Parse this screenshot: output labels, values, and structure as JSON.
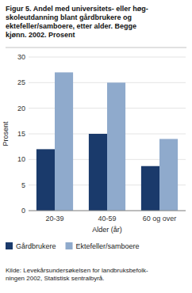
{
  "chart_data": {
    "type": "bar",
    "title": "Figur 5.  Andel med universitets- eller høg-\nskoleutdanning blant gårdbrukere og\nektefeller/samboere, etter alder. Begge\nkjønn. 2002. Prosent",
    "x_label": "Alder (år)",
    "y_label": "Prosent",
    "categories": [
      "20-39",
      "40-59",
      "60 og over"
    ],
    "series": [
      {
        "name": "Gårdbrukere",
        "color": "#1a3a6b",
        "values": [
          12,
          15,
          8.7
        ]
      },
      {
        "name": "Ektefeller/samboere",
        "color": "#8faacc",
        "values": [
          27,
          25,
          14
        ]
      }
    ],
    "ylim": [
      0,
      30
    ],
    "yticks": [
      0,
      5,
      10,
      15,
      20,
      25,
      30
    ],
    "grid": true,
    "legend": "bottom",
    "source": "Kilde: Levekårsundersøkelsen for landbruksbefolk-\nningen 2002, Statistisk sentralbyrå."
  }
}
